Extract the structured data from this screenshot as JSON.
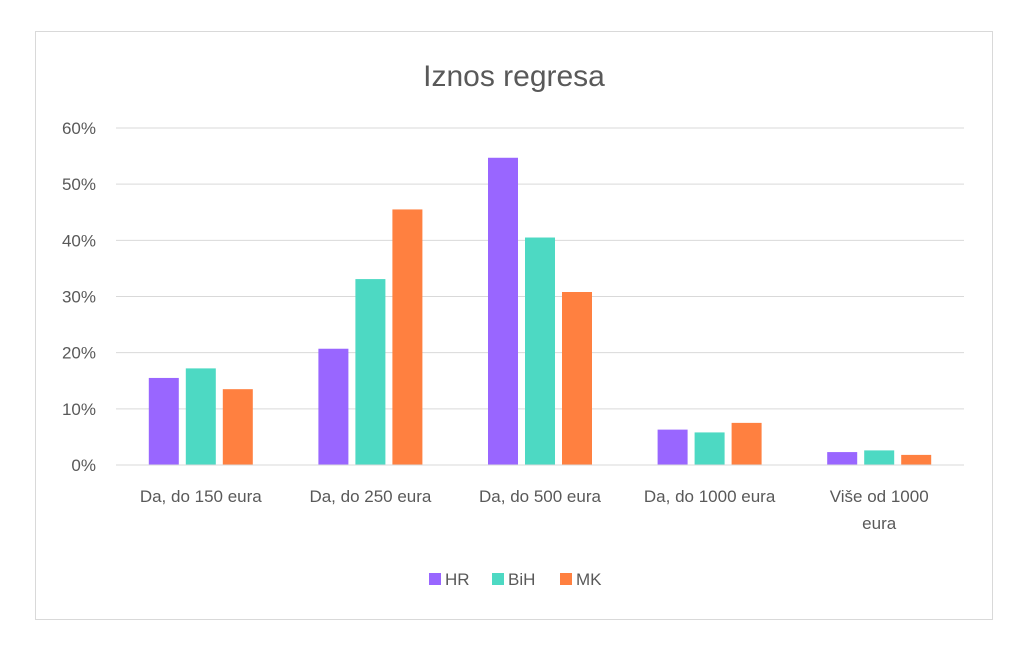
{
  "chart_data": {
    "type": "bar",
    "title": "Iznos regresa",
    "categories": [
      [
        "Da, do 150 eura"
      ],
      [
        "Da, do 250 eura"
      ],
      [
        "Da, do 500 eura"
      ],
      [
        "Da, do 1000 eura"
      ],
      [
        "Više od 1000",
        "eura"
      ]
    ],
    "series": [
      {
        "name": "HR",
        "color": "#9966ff",
        "values": [
          0.155,
          0.207,
          0.547,
          0.063,
          0.023
        ]
      },
      {
        "name": "BiH",
        "color": "#4dd9c3",
        "values": [
          0.172,
          0.331,
          0.405,
          0.058,
          0.026
        ]
      },
      {
        "name": "MK",
        "color": "#ff8040",
        "values": [
          0.135,
          0.455,
          0.308,
          0.075,
          0.018
        ]
      }
    ],
    "ylim": [
      0,
      0.6
    ],
    "yticks": [
      "0%",
      "10%",
      "20%",
      "30%",
      "40%",
      "50%",
      "60%"
    ],
    "grid": true,
    "legend": "bottom"
  }
}
